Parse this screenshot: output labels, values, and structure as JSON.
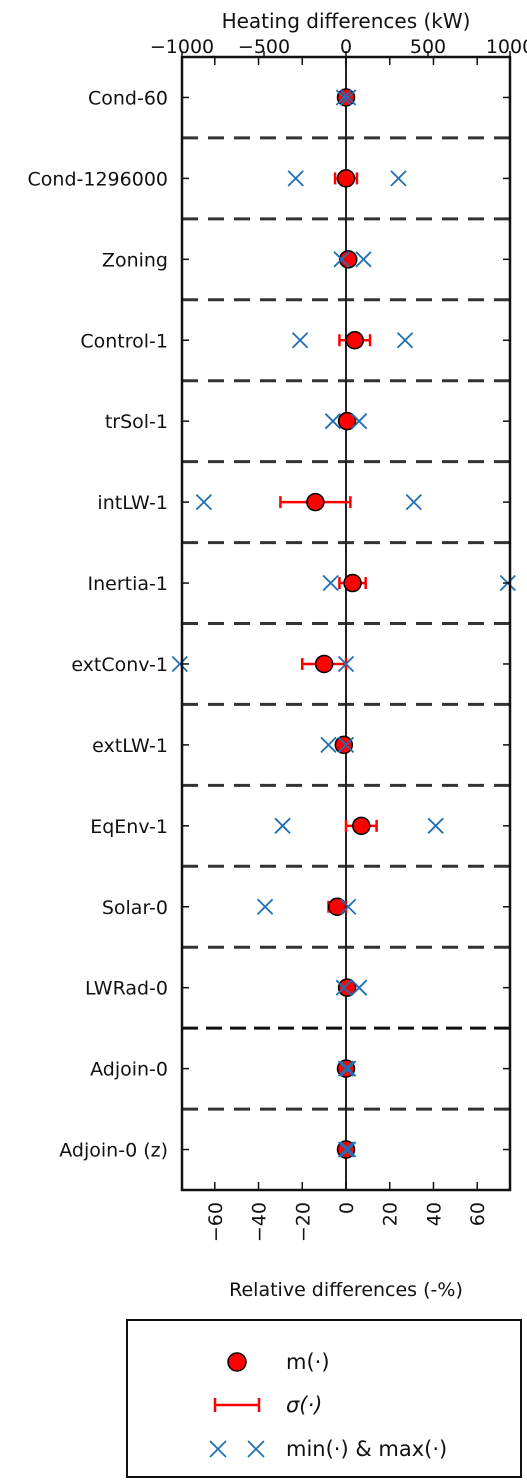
{
  "chart_data": {
    "type": "scatter",
    "orientation": "horizontal",
    "xlabel": "Relative differences (-%)",
    "x2label": "Heating differences (kW)",
    "xlim": [
      -75,
      75
    ],
    "x2lim": [
      -1000,
      1000
    ],
    "xticks": [
      -60,
      -40,
      -20,
      0,
      20,
      40,
      60
    ],
    "xtick_labels": [
      "−60",
      "−40",
      "−20",
      "0",
      "20",
      "40",
      "60"
    ],
    "x2ticks": [
      -1000,
      -500,
      0,
      500,
      1000
    ],
    "x2tick_labels": [
      "−1000",
      "−500",
      "0",
      "500",
      "1000"
    ],
    "categories": [
      "Cond-60",
      "Cond-1296000",
      "Zoning",
      "Control-1",
      "trSol-1",
      "intLW-1",
      "Inertia-1",
      "extConv-1",
      "extLW-1",
      "EqEnv-1",
      "Solar-0",
      "LWRad-0",
      "Adjoin-0",
      "Adjoin-0 (z)"
    ],
    "series": [
      {
        "name": "m(·)",
        "marker": "circle",
        "color": "#ff0000",
        "values": [
          0,
          0,
          1,
          4,
          0.5,
          -14,
          3,
          -10,
          -1,
          7,
          -4,
          0.5,
          0,
          0
        ]
      },
      {
        "name": "σ(·)",
        "marker": "errorbar",
        "color": "#ff0000",
        "values": [
          1,
          5,
          1,
          7,
          1,
          16,
          6,
          10,
          1,
          7,
          4,
          1,
          0.5,
          0.5
        ]
      },
      {
        "name": "min(·) & max(·)",
        "marker": "x",
        "color": "#1f6fb5",
        "min": [
          -1,
          -23,
          -2,
          -21,
          -6,
          -65,
          -7,
          -76,
          -8,
          -29,
          -37,
          -1,
          0,
          0
        ],
        "max": [
          1,
          24,
          8,
          27,
          6,
          31,
          74,
          0,
          0,
          41,
          1,
          6,
          1,
          1
        ]
      }
    ],
    "separators": {
      "dashed": [
        "Cond-60",
        "Cond-1296000",
        "Zoning",
        "Control-1",
        "trSol-1",
        "intLW-1",
        "Inertia-1",
        "extConv-1",
        "extLW-1",
        "EqEnv-1",
        "Solar-0",
        "Adjoin-0"
      ],
      "bold_dashed": [
        "LWRad-0"
      ]
    },
    "grid": false,
    "legend_position": "bottom"
  },
  "colors": {
    "mean": "#ff0000",
    "minmax": "#1f6fb5",
    "axis": "#111111",
    "separator": "#333333"
  }
}
